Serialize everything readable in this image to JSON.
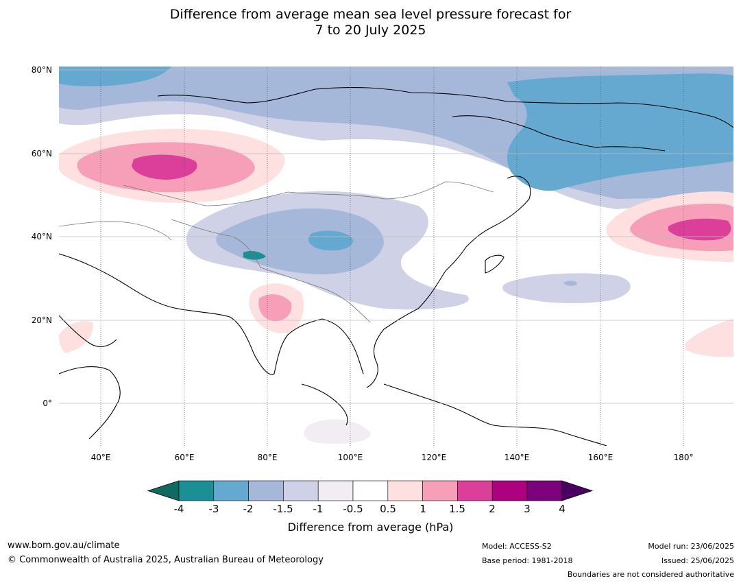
{
  "title": {
    "line1": "Difference from average mean sea level pressure forecast for",
    "line2": "7 to 20 July 2025"
  },
  "axes": {
    "lat_labels": [
      "80°N",
      "60°N",
      "40°N",
      "20°N",
      "0°"
    ],
    "lon_labels": [
      "40°E",
      "60°E",
      "80°E",
      "100°E",
      "120°E",
      "140°E",
      "160°E",
      "180°"
    ]
  },
  "colorbar": {
    "label": "Difference from average (hPa)",
    "ticks": [
      "-4",
      "-3",
      "-2",
      "-1.5",
      "-1",
      "-0.5",
      "0.5",
      "1",
      "1.5",
      "2",
      "3",
      "4"
    ],
    "colors": {
      "below_-4": "#0f6b62",
      "-4_-3": "#1b8e96",
      "-3_-2": "#66a9d0",
      "-2_-1.5": "#a5b8da",
      "-1.5_-1": "#cfd1e6",
      "-1_-0.5": "#f1edf3",
      "-0.5_0.5": "#ffffff",
      "0.5_1": "#fde0df",
      "1_1.5": "#f79fb9",
      "1.5_2": "#dc3f99",
      "2_3": "#ad0180",
      "3_4": "#7b027a",
      "above_4": "#4a0060"
    }
  },
  "footer": {
    "url": "www.bom.gov.au/climate",
    "copyright": "© Commonwealth of Australia 2025, Australian Bureau of Meteorology",
    "model": "Model: ACCESS-S2",
    "base_period": "Base period: 1981-2018",
    "model_run": "Model run: 23/06/2025",
    "issued": "Issued: 25/06/2025",
    "disclaimer": "Boundaries are not considered authoritative"
  }
}
